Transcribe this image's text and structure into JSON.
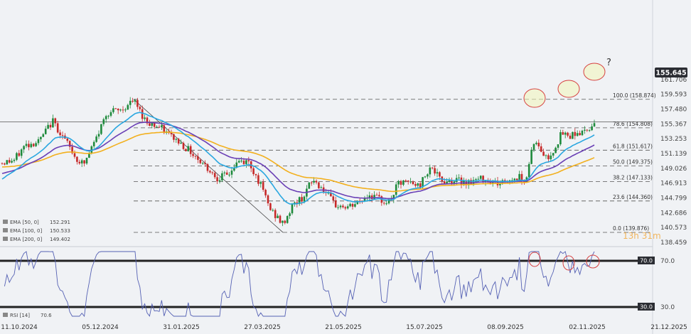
{
  "chart_data": {
    "type": "candlestick",
    "instrument_price_label": "155.645",
    "y_axis_ticks": [
      "161.706",
      "159.593",
      "157.480",
      "155.367",
      "153.253",
      "151.139",
      "149.026",
      "146.913",
      "144.799",
      "142.686",
      "140.573",
      "138.459"
    ],
    "x_axis_ticks": [
      "11.10.2024",
      "05.12.2024",
      "31.01.2025",
      "27.03.2025",
      "21.05.2025",
      "15.07.2025",
      "08.09.2025",
      "02.11.2025",
      "21.12.2025"
    ],
    "fibonacci_levels": [
      {
        "label": "100.0 (158.874)",
        "value": 158.874
      },
      {
        "label": "78.6 (154.808)",
        "value": 154.808
      },
      {
        "label": "61.8 (151.617)",
        "value": 151.617
      },
      {
        "label": "50.0 (149.375)",
        "value": 149.375
      },
      {
        "label": "38.2 (147.133)",
        "value": 147.133
      },
      {
        "label": "23.6 (144.360)",
        "value": 144.36
      },
      {
        "label": "0.0 (139.876)",
        "value": 139.876
      }
    ],
    "ema_legend": [
      {
        "label": "EMA [50, 0]",
        "value": "152.291",
        "color": "#2aa7e0"
      },
      {
        "label": "EMA [100, 0]",
        "value": "150.533",
        "color": "#6a3fb5"
      },
      {
        "label": "EMA [200, 0]",
        "value": "149.402",
        "color": "#f2b01e"
      }
    ],
    "annotation_question": "?",
    "watermark": "13h 31m",
    "rsi": {
      "legend_label": "RSI [14]",
      "legend_value": "70.6",
      "upper_level": "70.0",
      "lower_level": "30.0",
      "axis_ticks": [
        "70.0",
        "30.0"
      ]
    },
    "candle_colors": {
      "up": "#1e8a3c",
      "down": "#c62828"
    },
    "series_colors": {
      "rsi": "#5561b4",
      "fib": "#555555",
      "highlight_ellipse": "#d64040",
      "highlight_fill": "#f3f6b8"
    }
  }
}
